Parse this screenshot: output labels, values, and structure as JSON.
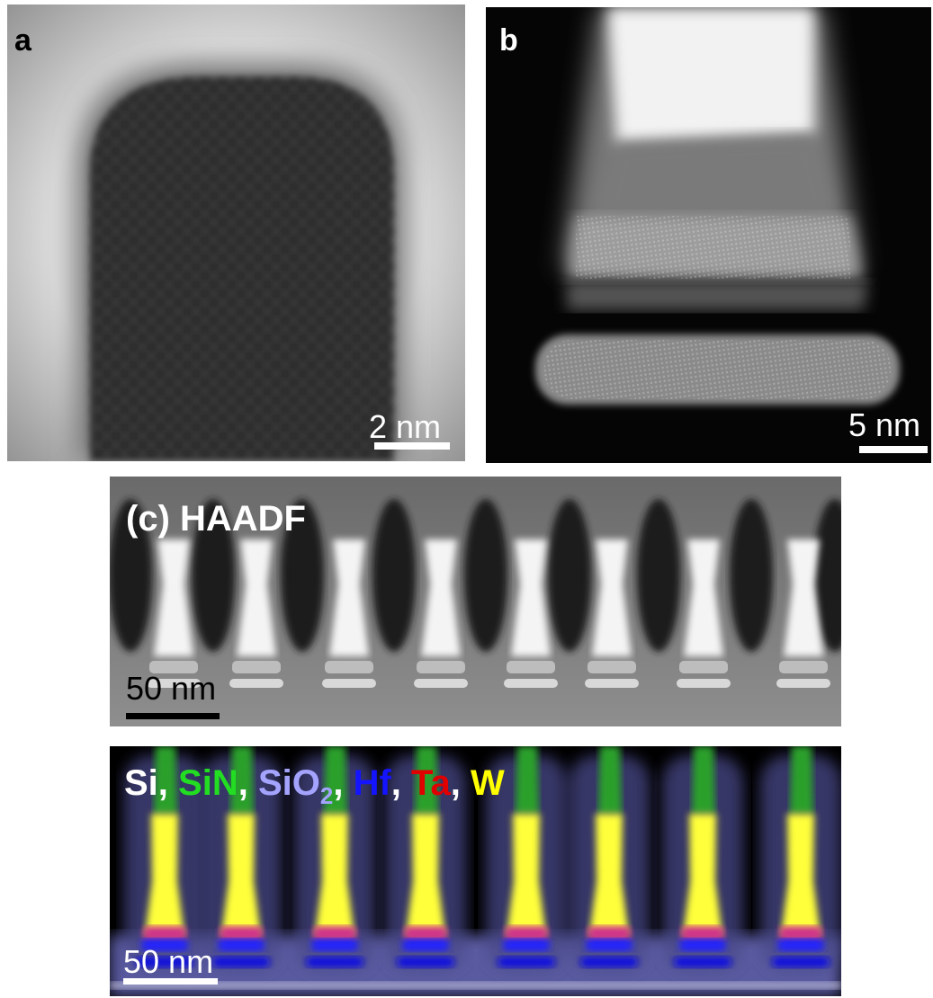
{
  "panels": {
    "a": {
      "label": "a",
      "scale_bar": "2 nm"
    },
    "b": {
      "label": "b",
      "scale_bar": "5 nm"
    },
    "c": {
      "label": "(c) HAADF",
      "scale_bar": "50 nm"
    },
    "d": {
      "separator": ", ",
      "legend": [
        {
          "text": "Si",
          "color": "#ffffff"
        },
        {
          "text": "SiN",
          "color": "#22dd22"
        },
        {
          "text": "SiO",
          "subscript": "2",
          "color": "#a4a4ff"
        },
        {
          "text": "Hf",
          "color": "#1414ff"
        },
        {
          "text": "Ta",
          "color": "#e00000"
        },
        {
          "text": "W",
          "color": "#ffff00"
        }
      ],
      "scale_bar": "50 nm"
    }
  }
}
